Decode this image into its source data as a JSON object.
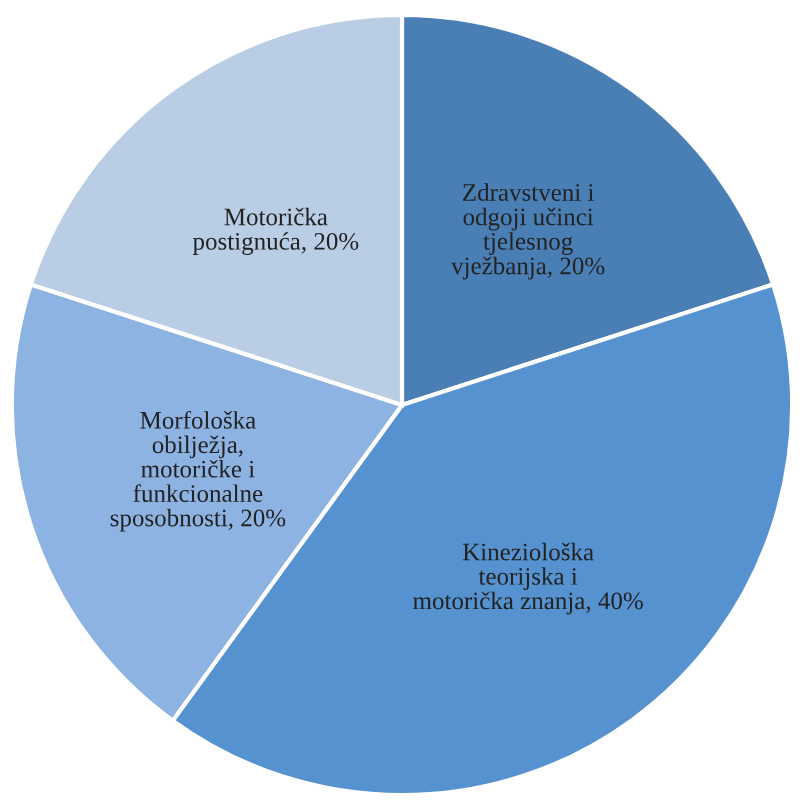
{
  "chart_data": {
    "type": "pie",
    "categories": [
      "Zdravstveni i\nodgoji učinci\ntjelesnog\nvježbanja",
      "Kineziološka\nteorijska i\nmotorička znanja",
      "Morfološka\nobilježja,\nmotoričke i\nfunkcionalne\nsposobnosti",
      "Motorička\npostignuća"
    ],
    "values": [
      20,
      40,
      20,
      20
    ],
    "value_labels": [
      "20%",
      "40%",
      "20%",
      "20%"
    ],
    "colors": [
      "#4a7fb5",
      "#5592cf",
      "#8db3e2",
      "#b9cde5"
    ]
  }
}
